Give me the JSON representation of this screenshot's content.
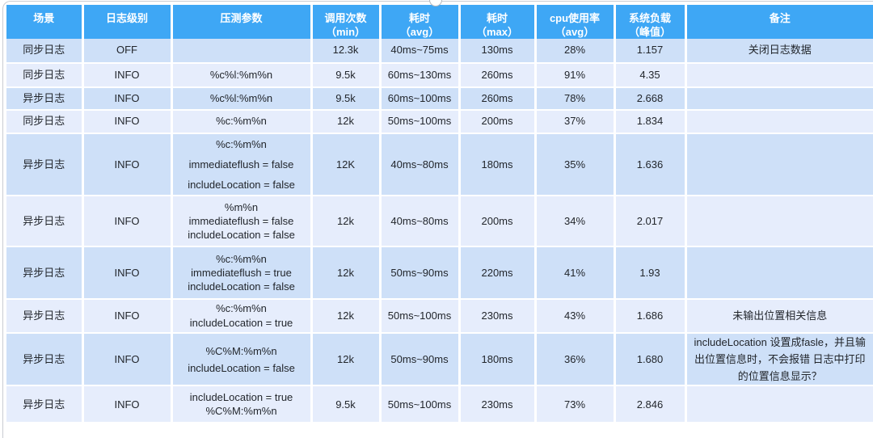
{
  "colors": {
    "header_bg": "#3EA7F5",
    "header_text": "#FFFFFF",
    "row_odd": "#CEE0F8",
    "row_even": "#E6EDFC",
    "body_text": "#22262C"
  },
  "table": {
    "columns": [
      {
        "label": "场景",
        "sub": ""
      },
      {
        "label": "日志级别",
        "sub": ""
      },
      {
        "label": "压测参数",
        "sub": ""
      },
      {
        "label": "调用次数",
        "sub": "（min）"
      },
      {
        "label": "耗时",
        "sub": "（avg）"
      },
      {
        "label": "耗时",
        "sub": "（max）"
      },
      {
        "label": "cpu使用率",
        "sub": "（avg）"
      },
      {
        "label": "系统负载",
        "sub": "（峰值）"
      },
      {
        "label": "备注",
        "sub": ""
      }
    ],
    "rows": [
      {
        "scene": "同步日志",
        "level": "OFF",
        "params": [],
        "calls": "12.3k",
        "avg": "40ms~75ms",
        "max": "130ms",
        "cpu": "28%",
        "load": "1.157",
        "note": "关闭日志数据"
      },
      {
        "scene": "同步日志",
        "level": "INFO",
        "params": [
          "%c%l:%m%n"
        ],
        "calls": "9.5k",
        "avg": "60ms~130ms",
        "max": "260ms",
        "cpu": "91%",
        "load": "4.35",
        "note": ""
      },
      {
        "scene": "异步日志",
        "level": "INFO",
        "params": [
          "%c%l:%m%n"
        ],
        "calls": "9.5k",
        "avg": "60ms~100ms",
        "max": "260ms",
        "cpu": "78%",
        "load": "2.668",
        "note": ""
      },
      {
        "scene": "同步日志",
        "level": "INFO",
        "params": [
          "%c:%m%n"
        ],
        "calls": "12k",
        "avg": "50ms~100ms",
        "max": "200ms",
        "cpu": "37%",
        "load": "1.834",
        "note": ""
      },
      {
        "scene": "异步日志",
        "level": "INFO",
        "params": [
          "%c:%m%n",
          "immediateflush = false",
          "includeLocation = false"
        ],
        "calls": "12K",
        "avg": "40ms~80ms",
        "max": "180ms",
        "cpu": "35%",
        "load": "1.636",
        "note": ""
      },
      {
        "scene": "异步日志",
        "level": "INFO",
        "params": [
          "%m%n",
          "immediateflush = false",
          "includeLocation = false"
        ],
        "calls": "12k",
        "avg": "40ms~80ms",
        "max": "200ms",
        "cpu": "34%",
        "load": "2.017",
        "note": ""
      },
      {
        "scene": "异步日志",
        "level": "INFO",
        "params": [
          "%c:%m%n",
          "immediateflush = true",
          "includeLocation = false"
        ],
        "calls": "12k",
        "avg": "50ms~90ms",
        "max": "220ms",
        "cpu": "41%",
        "load": "1.93",
        "note": ""
      },
      {
        "scene": "异步日志",
        "level": "INFO",
        "params": [
          "%c:%m%n",
          "includeLocation = true"
        ],
        "calls": "12k",
        "avg": "50ms~100ms",
        "max": "230ms",
        "cpu": "43%",
        "load": "1.686",
        "note": "未输出位置相关信息"
      },
      {
        "scene": "异步日志",
        "level": "INFO",
        "params": [
          "%C%M:%m%n",
          "includeLocation = false"
        ],
        "calls": "12k",
        "avg": "50ms~90ms",
        "max": "180ms",
        "cpu": "36%",
        "load": "1.680",
        "note": "includeLocation 设置成fasle，并且输出位置信息时，不会报错 日志中打印的位置信息显示？"
      },
      {
        "scene": "异步日志",
        "level": "INFO",
        "params": [
          "includeLocation = true",
          "%C%M:%m%n"
        ],
        "calls": "9.5k",
        "avg": "50ms~100ms",
        "max": "230ms",
        "cpu": "73%",
        "load": "2.846",
        "note": ""
      }
    ]
  }
}
